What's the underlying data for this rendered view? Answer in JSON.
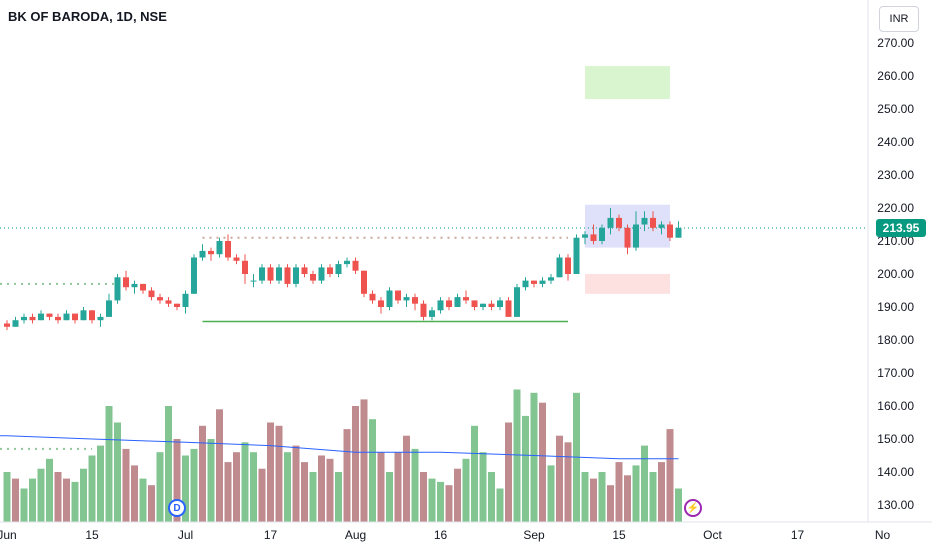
{
  "header": {
    "title": "BK OF BARODA, 1D, NSE",
    "currency": "INR"
  },
  "colors": {
    "up": "#26a69a",
    "down": "#ef5350",
    "vol_up": "#82c591",
    "vol_down": "#c08b8f",
    "ma": "#2962ff",
    "support": "#4caf50",
    "last_price": "#089981"
  },
  "markers": {
    "dividend": "D",
    "earnings": "⚡",
    "dividend_icon": "dividend-icon",
    "earnings_icon": "lightning-icon"
  },
  "chart_data": {
    "type": "candlestick",
    "title": "BK OF BARODA, 1D, NSE",
    "ylim": [
      125,
      275
    ],
    "y_ticks": [
      "270.00",
      "260.00",
      "250.00",
      "240.00",
      "230.00",
      "220.00",
      "210.00",
      "200.00",
      "190.00",
      "180.00",
      "170.00",
      "160.00",
      "150.00",
      "140.00",
      "130.00"
    ],
    "x_ticks": [
      {
        "label": "Jun",
        "i": 0
      },
      {
        "label": "15",
        "i": 10
      },
      {
        "label": "Jul",
        "i": 21
      },
      {
        "label": "17",
        "i": 31
      },
      {
        "label": "Aug",
        "i": 41
      },
      {
        "label": "16",
        "i": 51
      },
      {
        "label": "Sep",
        "i": 62
      },
      {
        "label": "15",
        "i": 72
      },
      {
        "label": "Oct",
        "i": 83
      },
      {
        "label": "17",
        "i": 93
      },
      {
        "label": "No",
        "i": 103
      }
    ],
    "last_price": "213.95",
    "candles": [
      [
        185,
        186,
        183,
        184
      ],
      [
        184,
        187,
        184,
        186
      ],
      [
        186,
        188,
        185,
        187
      ],
      [
        187,
        188,
        185,
        186
      ],
      [
        186,
        189,
        186,
        188
      ],
      [
        188,
        188,
        186,
        187
      ],
      [
        187,
        188,
        185,
        186
      ],
      [
        186,
        189,
        186,
        188
      ],
      [
        188,
        188,
        185,
        186
      ],
      [
        186,
        190,
        186,
        189
      ],
      [
        189,
        189,
        185,
        186
      ],
      [
        186,
        188,
        184,
        187
      ],
      [
        187,
        194,
        187,
        192
      ],
      [
        192,
        200,
        191,
        199
      ],
      [
        199,
        201,
        195,
        196
      ],
      [
        196,
        198,
        194,
        197
      ],
      [
        197,
        197,
        194,
        195
      ],
      [
        195,
        196,
        192,
        193
      ],
      [
        193,
        194,
        191,
        192
      ],
      [
        192,
        193,
        190,
        191
      ],
      [
        191,
        191,
        189,
        190
      ],
      [
        190,
        195,
        188,
        194
      ],
      [
        194,
        206,
        194,
        205
      ],
      [
        205,
        209,
        204,
        207
      ],
      [
        207,
        208,
        204,
        206
      ],
      [
        206,
        211,
        205,
        210
      ],
      [
        210,
        212,
        204,
        205
      ],
      [
        205,
        206,
        203,
        204
      ],
      [
        204,
        206,
        197,
        200
      ],
      [
        198,
        200,
        196,
        198
      ],
      [
        198,
        203,
        197,
        202
      ],
      [
        202,
        203,
        197,
        198
      ],
      [
        198,
        203,
        197,
        202
      ],
      [
        202,
        203,
        196,
        197
      ],
      [
        197,
        203,
        196,
        202
      ],
      [
        202,
        203,
        199,
        200
      ],
      [
        200,
        201,
        197,
        198
      ],
      [
        198,
        203,
        197,
        202
      ],
      [
        202,
        203,
        199,
        200
      ],
      [
        200,
        204,
        199,
        203
      ],
      [
        203,
        205,
        202,
        204
      ],
      [
        204,
        205,
        200,
        201
      ],
      [
        201,
        201,
        193,
        194
      ],
      [
        194,
        195,
        191,
        192
      ],
      [
        192,
        193,
        188,
        190
      ],
      [
        190,
        196,
        189,
        195
      ],
      [
        195,
        195,
        191,
        192
      ],
      [
        192,
        194,
        190,
        193
      ],
      [
        193,
        194,
        189,
        191
      ],
      [
        191,
        192,
        186,
        187
      ],
      [
        187,
        190,
        186,
        189
      ],
      [
        189,
        193,
        188,
        192
      ],
      [
        192,
        193,
        189,
        190
      ],
      [
        190,
        194,
        190,
        193
      ],
      [
        193,
        195,
        191,
        192
      ],
      [
        192,
        192,
        189,
        190
      ],
      [
        190,
        191,
        189,
        191
      ],
      [
        191,
        192,
        189,
        190
      ],
      [
        190,
        193,
        189,
        192
      ],
      [
        192,
        193,
        188,
        187
      ],
      [
        187,
        197,
        187,
        196
      ],
      [
        196,
        199,
        195,
        198
      ],
      [
        198,
        198,
        196,
        197
      ],
      [
        197,
        199,
        196,
        198
      ],
      [
        198,
        200,
        197,
        199
      ],
      [
        199,
        206,
        199,
        205
      ],
      [
        205,
        206,
        198,
        200
      ],
      [
        200,
        212,
        200,
        211
      ],
      [
        211,
        213,
        209,
        212
      ],
      [
        212,
        215,
        209,
        210
      ],
      [
        210,
        215,
        209,
        214
      ],
      [
        214,
        220,
        212,
        217
      ],
      [
        217,
        218,
        213,
        214
      ],
      [
        214,
        215,
        206,
        208
      ],
      [
        208,
        219,
        207,
        215
      ],
      [
        215,
        219,
        213,
        217
      ],
      [
        217,
        219,
        213,
        214
      ],
      [
        214,
        216,
        212,
        215
      ],
      [
        215,
        216,
        210,
        211
      ],
      [
        211,
        216,
        211,
        214
      ]
    ],
    "volume": [
      [
        140,
        "up"
      ],
      [
        138,
        "down"
      ],
      [
        135,
        "up"
      ],
      [
        138,
        "up"
      ],
      [
        141,
        "up"
      ],
      [
        144,
        "up"
      ],
      [
        140,
        "down"
      ],
      [
        138,
        "down"
      ],
      [
        137,
        "up"
      ],
      [
        141,
        "up"
      ],
      [
        145,
        "up"
      ],
      [
        148,
        "up"
      ],
      [
        160,
        "up"
      ],
      [
        155,
        "up"
      ],
      [
        147,
        "down"
      ],
      [
        142,
        "down"
      ],
      [
        138,
        "up"
      ],
      [
        136,
        "down"
      ],
      [
        146,
        "up"
      ],
      [
        160,
        "up"
      ],
      [
        150,
        "down"
      ],
      [
        145,
        "up"
      ],
      [
        147,
        "up"
      ],
      [
        154,
        "down"
      ],
      [
        150,
        "up"
      ],
      [
        159,
        "down"
      ],
      [
        143,
        "down"
      ],
      [
        146,
        "down"
      ],
      [
        149,
        "up"
      ],
      [
        146,
        "up"
      ],
      [
        141,
        "down"
      ],
      [
        155,
        "down"
      ],
      [
        154,
        "down"
      ],
      [
        146,
        "up"
      ],
      [
        148,
        "down"
      ],
      [
        143,
        "down"
      ],
      [
        140,
        "up"
      ],
      [
        145,
        "down"
      ],
      [
        144,
        "down"
      ],
      [
        140,
        "up"
      ],
      [
        153,
        "down"
      ],
      [
        160,
        "down"
      ],
      [
        162,
        "down"
      ],
      [
        156,
        "up"
      ],
      [
        146,
        "down"
      ],
      [
        140,
        "up"
      ],
      [
        146,
        "down"
      ],
      [
        151,
        "down"
      ],
      [
        147,
        "up"
      ],
      [
        140,
        "down"
      ],
      [
        138,
        "up"
      ],
      [
        137,
        "up"
      ],
      [
        136,
        "down"
      ],
      [
        141,
        "down"
      ],
      [
        144,
        "up"
      ],
      [
        154,
        "up"
      ],
      [
        146,
        "up"
      ],
      [
        140,
        "up"
      ],
      [
        135,
        "up"
      ],
      [
        155,
        "down"
      ],
      [
        165,
        "up"
      ],
      [
        157,
        "up"
      ],
      [
        164,
        "up"
      ],
      [
        161,
        "down"
      ],
      [
        142,
        "up"
      ],
      [
        151,
        "down"
      ],
      [
        149,
        "down"
      ],
      [
        164,
        "up"
      ],
      [
        140,
        "up"
      ],
      [
        138,
        "down"
      ],
      [
        140,
        "up"
      ],
      [
        136,
        "down"
      ],
      [
        143,
        "down"
      ],
      [
        139,
        "down"
      ],
      [
        142,
        "up"
      ],
      [
        148,
        "up"
      ],
      [
        140,
        "up"
      ],
      [
        143,
        "down"
      ],
      [
        153,
        "down"
      ],
      [
        135,
        "up"
      ]
    ],
    "volume_ma": [
      [
        0,
        151
      ],
      [
        10,
        150
      ],
      [
        21,
        149
      ],
      [
        31,
        148
      ],
      [
        41,
        146
      ],
      [
        51,
        146
      ],
      [
        62,
        145
      ],
      [
        72,
        144
      ],
      [
        79,
        144
      ]
    ],
    "support_line": {
      "y": 185.6,
      "i_start": 23,
      "i_end": 66
    },
    "resistance_dotted": {
      "y": 211,
      "i_start": 23,
      "i_end": 66
    },
    "left_dotted": [
      {
        "y": 197,
        "i_end": 13
      },
      {
        "y": 147,
        "i_end": 10
      }
    ],
    "last_price_line": 213.95,
    "zones": [
      {
        "name": "target-zone",
        "y": [
          253,
          263
        ],
        "i": [
          68,
          78
        ],
        "color": "#d8f5d0"
      },
      {
        "name": "entry-zone",
        "y": [
          208,
          221
        ],
        "i": [
          68,
          78
        ],
        "color": "#dfe0fa"
      },
      {
        "name": "stop-zone",
        "y": [
          194,
          200
        ],
        "i": [
          68,
          78
        ],
        "color": "#fde0e0"
      }
    ]
  }
}
